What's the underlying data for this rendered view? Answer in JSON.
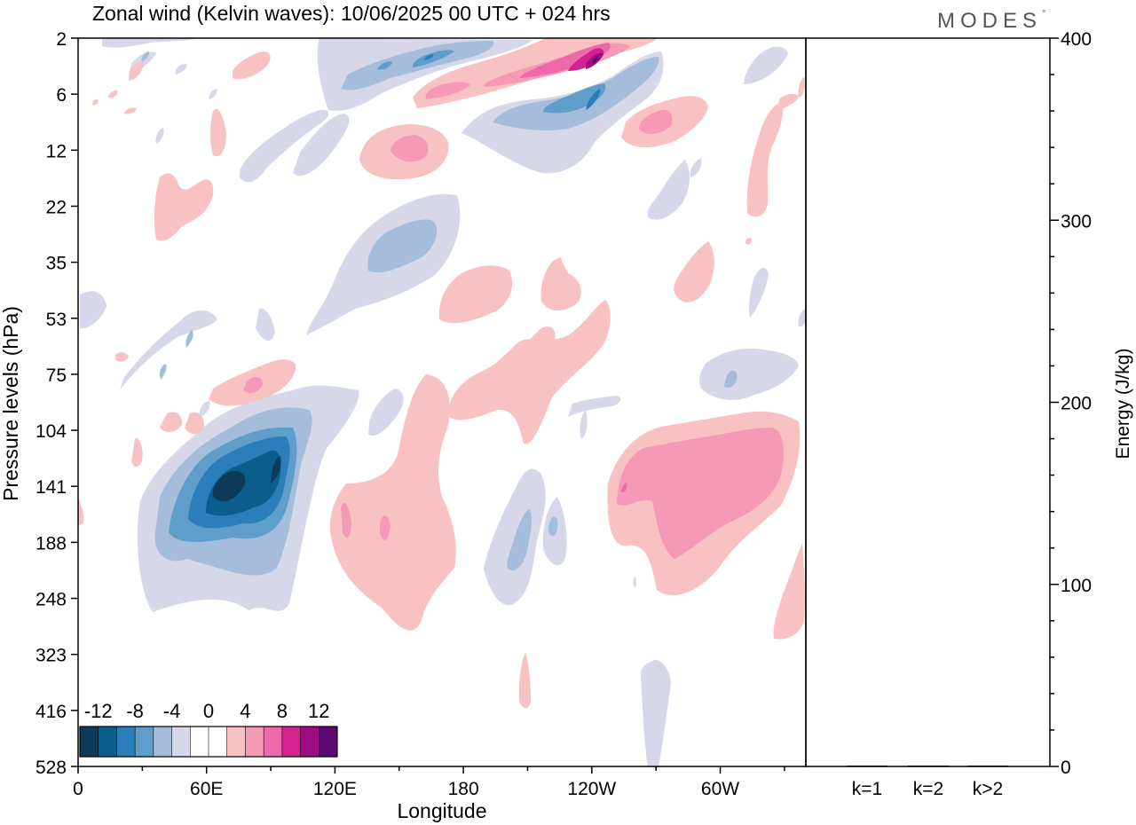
{
  "chart_data": [
    {
      "type": "heatmap",
      "title": "Zonal wind (Kelvin waves):  10/06/2025  00 UTC  + 024 hrs",
      "xlabel": "Longitude",
      "ylabel": "Pressure levels (hPa)",
      "x_ticks": [
        "0",
        "60E",
        "120E",
        "180",
        "120W",
        "60W"
      ],
      "x_tick_values": [
        0,
        60,
        120,
        180,
        240,
        300
      ],
      "xlim": [
        0,
        340
      ],
      "y_ticks": [
        "2",
        "6",
        "12",
        "22",
        "35",
        "53",
        "75",
        "104",
        "141",
        "188",
        "248",
        "323",
        "416",
        "528"
      ],
      "y_scale": "log-pressure (top = 2 hPa, bottom = 528 hPa)",
      "colorbar": {
        "labels": [
          "-12",
          "-8",
          "-4",
          "0",
          "4",
          "8",
          "12"
        ],
        "colors": [
          "#0d3a57",
          "#0b5d8c",
          "#2a7fbb",
          "#5f9dca",
          "#a5bcdb",
          "#d6d8ea",
          "#ffffff",
          "#ffffff",
          "#f8c2c2",
          "#f59ab6",
          "#ee69a9",
          "#d2228f",
          "#9c0d80",
          "#5a0a6e"
        ]
      },
      "features": [
        {
          "lon": 55,
          "lev": 141,
          "value": -13
        },
        {
          "lon": 95,
          "lev": 141,
          "value": -12
        },
        {
          "lon": 73,
          "lev": 75,
          "value": 6
        },
        {
          "lon": 258,
          "lev": 4,
          "value": 12
        },
        {
          "lon": 238,
          "lev": 6,
          "value": -9
        },
        {
          "lon": 300,
          "lev": 125,
          "value": 6
        },
        {
          "lon": 242,
          "lev": 180,
          "value": -6
        },
        {
          "lon": 182,
          "lev": 28,
          "value": -5
        },
        {
          "lon": 154,
          "lev": 12,
          "value": 6
        }
      ]
    },
    {
      "type": "bar",
      "categories": [
        "k=1",
        "k=2",
        "k>2"
      ],
      "values": [
        0.3,
        0.4,
        0.4
      ],
      "ylabel": "Energy (J/kg)",
      "ylim": [
        0,
        400
      ],
      "y_ticks": [
        "0",
        "100",
        "200",
        "300",
        "400"
      ],
      "y_tick_values": [
        0,
        100,
        200,
        300,
        400
      ]
    }
  ],
  "logo_text": "MODES",
  "logo_mark": "°"
}
